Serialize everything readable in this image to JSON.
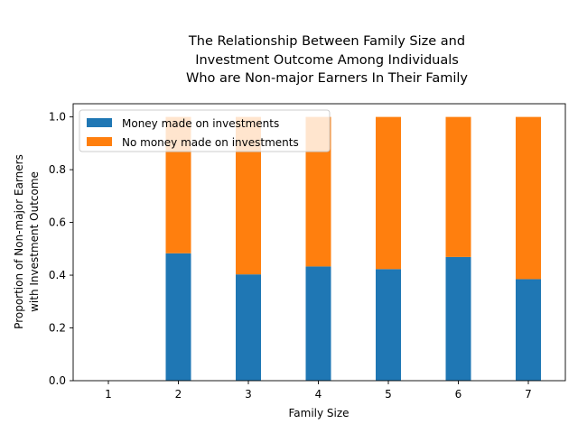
{
  "chart_data": {
    "type": "bar",
    "stacked": true,
    "title_lines": [
      "The Relationship Between Family Size and",
      "Investment Outcome Among Individuals",
      "Who are Non-major Earners In Their Family"
    ],
    "xlabel": "Family Size",
    "ylabel_lines": [
      "Proportion of Non-major Earners",
      "with Investment Outcome"
    ],
    "categories": [
      "1",
      "2",
      "3",
      "4",
      "5",
      "6",
      "7"
    ],
    "ylim": [
      0,
      1.05
    ],
    "yticks": [
      "0.0",
      "0.2",
      "0.4",
      "0.6",
      "0.8",
      "1.0"
    ],
    "grid": false,
    "legend_position": "top-left",
    "series": [
      {
        "name": "Money made on investments",
        "color": "#1f77b4",
        "values": [
          0,
          0.483,
          0.403,
          0.433,
          0.423,
          0.469,
          0.385
        ]
      },
      {
        "name": "No money made on investments",
        "color": "#ff7f0e",
        "values": [
          0,
          0.517,
          0.597,
          0.567,
          0.577,
          0.531,
          0.615
        ]
      }
    ]
  }
}
